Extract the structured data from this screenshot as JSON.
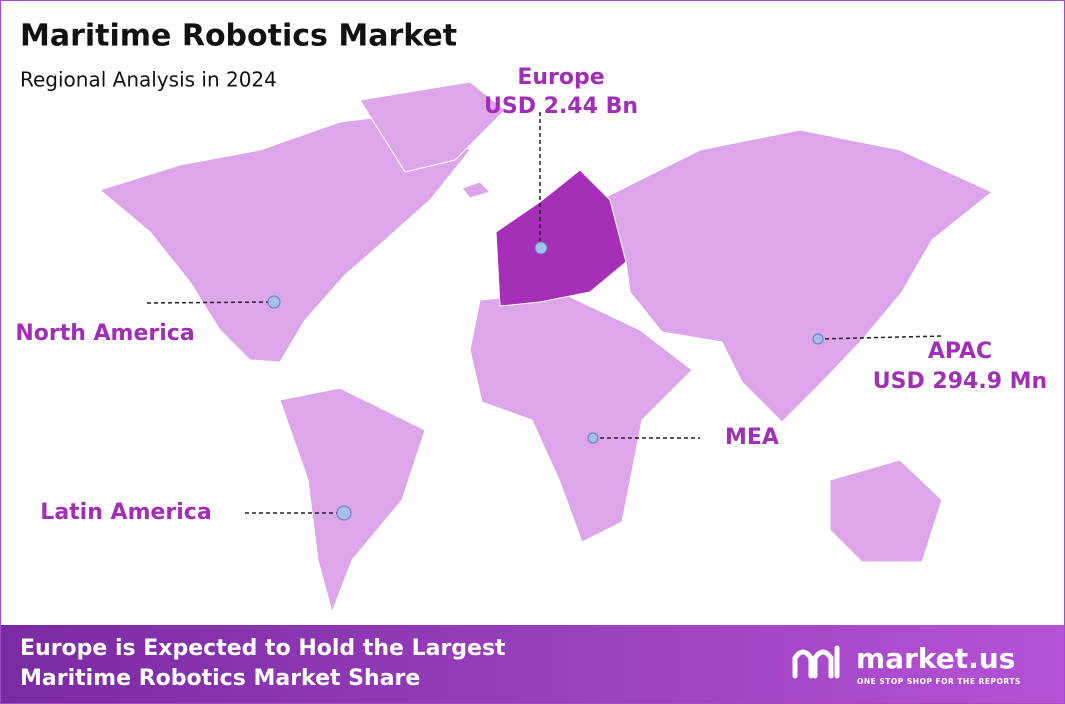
{
  "header": {
    "title": "Maritime Robotics Market",
    "subtitle": "Regional Analysis in 2024"
  },
  "regions": [
    {
      "name": "Europe",
      "value": "USD 2.44 Bn"
    },
    {
      "name": "North America"
    },
    {
      "name": "APAC",
      "value": "USD 294.9 Mn"
    },
    {
      "name": "MEA"
    },
    {
      "name": "Latin America"
    }
  ],
  "footer": {
    "lines": [
      "Europe is Expected to Hold the Largest",
      "Maritime Robotics Market Share"
    ],
    "brand": "market.us",
    "tagline": "ONE STOP SHOP FOR THE REPORTS"
  }
}
